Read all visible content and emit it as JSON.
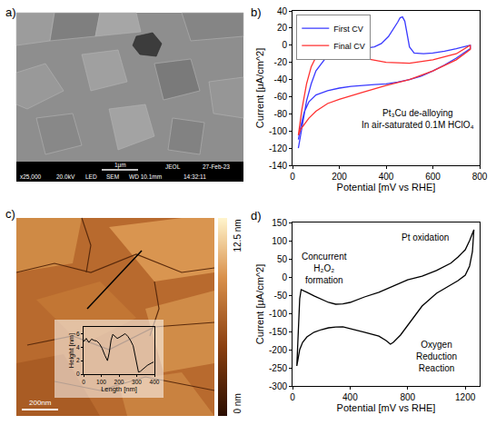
{
  "chart_data": [
    {
      "label": "b)",
      "type": "line",
      "xlabel": "Potential [mV vs RHE]",
      "ylabel": "Current [μA/cm^2]",
      "xlim": [
        0,
        800
      ],
      "xticks": [
        0,
        200,
        400,
        600,
        800
      ],
      "ylim": [
        -140,
        40
      ],
      "yticks": [
        -140,
        -120,
        -100,
        -80,
        -60,
        -40,
        -20,
        0,
        20,
        40
      ],
      "grid": false,
      "legend": "upper left",
      "annotations": [
        [
          "Pt₃Cu de-alloying",
          "In air-saturated 0.1M HClO₄"
        ]
      ],
      "series": [
        {
          "name": "First CV",
          "color": "#3a3aff",
          "x": [
            25,
            40,
            60,
            80,
            100,
            150,
            200,
            250,
            300,
            350,
            380,
            410,
            430,
            450,
            460,
            470,
            480,
            490,
            500,
            520,
            560,
            600,
            650,
            700,
            760,
            760,
            700,
            650,
            600,
            550,
            500,
            450,
            400,
            350,
            300,
            250,
            200,
            150,
            100,
            70,
            50,
            35,
            25
          ],
          "values": [
            -120,
            -95,
            -65,
            -45,
            -30,
            -12,
            -6,
            -5,
            -4,
            -2,
            2,
            10,
            18,
            27,
            32,
            33,
            28,
            12,
            -2,
            -9,
            -10,
            -9,
            -7,
            -4,
            0,
            -4,
            -15,
            -23,
            -30,
            -36,
            -40,
            -43,
            -45,
            -46,
            -47,
            -48,
            -50,
            -53,
            -58,
            -66,
            -78,
            -95,
            -110
          ]
        },
        {
          "name": "Final CV",
          "color": "#ff3030",
          "x": [
            25,
            40,
            60,
            80,
            100,
            130,
            160,
            200,
            250,
            300,
            400,
            500,
            600,
            700,
            760,
            760,
            700,
            600,
            500,
            400,
            300,
            200,
            150,
            100,
            70,
            50,
            35,
            25
          ],
          "values": [
            -105,
            -75,
            -45,
            -25,
            -14,
            -7,
            -6,
            -8,
            -12,
            -15,
            -20,
            -21,
            -17,
            -10,
            0,
            -5,
            -17,
            -30,
            -40,
            -47,
            -55,
            -63,
            -68,
            -77,
            -85,
            -92,
            -98,
            -105
          ]
        }
      ]
    },
    {
      "label": "d)",
      "type": "line",
      "xlabel": "Potential [mV vs RHE]",
      "ylabel": "Current [μA/cm^2]",
      "xlim": [
        0,
        1300
      ],
      "xticks": [
        0,
        400,
        800,
        1200
      ],
      "ylim": [
        -300,
        150
      ],
      "yticks": [
        -300,
        -250,
        -200,
        -150,
        -100,
        -50,
        0,
        50,
        100,
        150
      ],
      "grid": false,
      "annotations": [
        [
          "Pt oxidation"
        ],
        [
          "Concurrent",
          "H₂O₂",
          "formation"
        ],
        [
          "Oxygen",
          "Reduction",
          "Reaction"
        ]
      ],
      "series": [
        {
          "color": "#000000",
          "x": [
            30,
            40,
            50,
            60,
            80,
            100,
            150,
            200,
            250,
            300,
            350,
            400,
            450,
            500,
            600,
            700,
            800,
            900,
            1000,
            1100,
            1150,
            1200,
            1230,
            1260,
            1250,
            1230,
            1200,
            1150,
            1100,
            1000,
            900,
            800,
            750,
            700,
            680,
            650,
            600,
            500,
            400,
            350,
            300,
            250,
            200,
            150,
            100,
            70,
            50,
            40,
            30
          ],
          "values": [
            -245,
            -150,
            -60,
            -35,
            -38,
            -42,
            -52,
            -62,
            -70,
            -75,
            -74,
            -70,
            -62,
            -55,
            -42,
            -25,
            -8,
            2,
            18,
            38,
            55,
            75,
            100,
            130,
            70,
            30,
            5,
            -10,
            -22,
            -45,
            -80,
            -135,
            -160,
            -180,
            -185,
            -175,
            -163,
            -152,
            -143,
            -137,
            -138,
            -140,
            -145,
            -152,
            -165,
            -180,
            -200,
            -220,
            -245
          ]
        }
      ]
    },
    {
      "type": "line",
      "xlabel": "Length [nm]",
      "ylabel": "Height [nm]",
      "xlim": [
        0,
        400
      ],
      "xticks": [
        0,
        100,
        200,
        300,
        400
      ],
      "ylim": [
        0,
        7
      ],
      "yticks": [
        0,
        2,
        4,
        6
      ],
      "grid": false,
      "series": [
        {
          "color": "#000000",
          "x": [
            0,
            15,
            30,
            45,
            60,
            75,
            90,
            105,
            120,
            135,
            145,
            155,
            165,
            175,
            190,
            205,
            220,
            235,
            250,
            265,
            280,
            290,
            300,
            310,
            320,
            340,
            360,
            380,
            395
          ],
          "values": [
            4.8,
            5.3,
            4.7,
            5.2,
            5.0,
            4.9,
            4.5,
            3.8,
            2.8,
            2.0,
            3.2,
            5.0,
            5.9,
            5.6,
            5.3,
            5.5,
            5.8,
            6.0,
            5.6,
            5.0,
            4.2,
            3.0,
            1.5,
            0.3,
            0.4,
            0.9,
            1.3,
            1.6,
            1.8
          ]
        }
      ]
    }
  ],
  "sem_image": {
    "label": "a)",
    "scale_bar": "1μm",
    "info": [
      "JEOL",
      "27-Feb-23"
    ],
    "footer": [
      "x25,000",
      "20.0kV",
      "LED",
      "SEM",
      "WD 10.1mm",
      "14:32:11"
    ]
  },
  "afm_image": {
    "label": "c)",
    "scale_bar": "200nm",
    "colorbar": {
      "range": [
        0,
        12.5
      ],
      "ticks": [
        {
          "value": 0,
          "label": "0 nm"
        },
        {
          "value": 12.5,
          "label": "12.5 nm"
        }
      ]
    }
  }
}
